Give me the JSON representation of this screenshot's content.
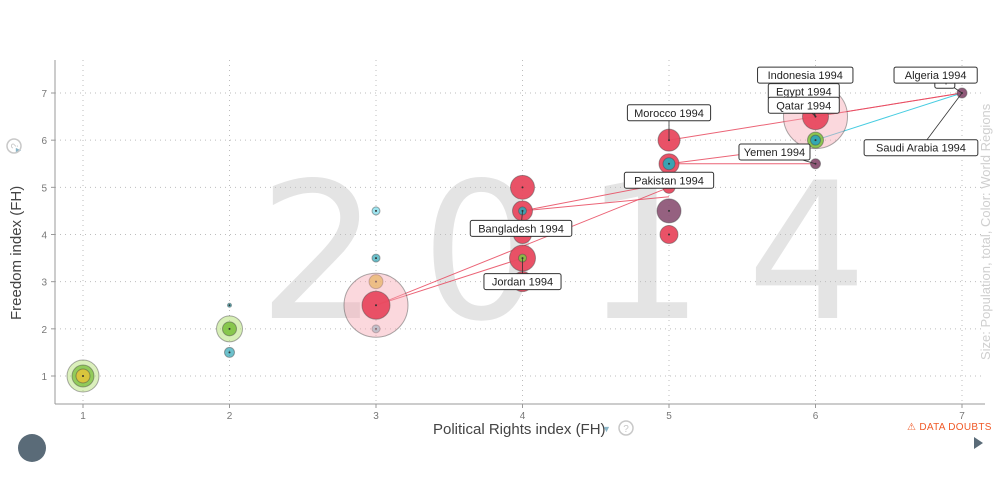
{
  "chart_data": {
    "type": "scatter",
    "year_watermark": "2014",
    "xlabel": "Political Rights index (FH)",
    "ylabel": "Freedom index (FH)",
    "size_caption": "Size: Population, total, Color: World Regions",
    "xlim": [
      0.8,
      7.2
    ],
    "ylim": [
      0.5,
      7.5
    ],
    "x_ticks": [
      "1",
      "2",
      "3",
      "4",
      "5",
      "6",
      "7"
    ],
    "y_ticks": [
      "1",
      "2",
      "3",
      "4",
      "5",
      "6",
      "7"
    ],
    "grid": true,
    "colors": {
      "red": "#e8495f",
      "green": "#7fc241",
      "yellow": "#e0c43a",
      "teal": "#2fa6b6",
      "purple": "#8a5072",
      "trail_red": "#e8495f",
      "trail_teal": "#28c4dc"
    },
    "bubbles": [
      {
        "x": 1,
        "y": 1,
        "r": 16,
        "color": "#b7e27a",
        "opacity": 0.5
      },
      {
        "x": 1,
        "y": 1,
        "r": 11,
        "color": "#7fc241",
        "opacity": 0.8
      },
      {
        "x": 1,
        "y": 1,
        "r": 7,
        "color": "#e0c43a",
        "opacity": 0.9
      },
      {
        "x": 2,
        "y": 2,
        "r": 13,
        "color": "#b7e27a",
        "opacity": 0.55
      },
      {
        "x": 2,
        "y": 2,
        "r": 7,
        "color": "#7fc241",
        "opacity": 0.9
      },
      {
        "x": 2,
        "y": 1.5,
        "r": 5,
        "color": "#2fa6b6",
        "opacity": 0.7
      },
      {
        "x": 2,
        "y": 2.5,
        "r": 2,
        "color": "#2fa6b6",
        "opacity": 0.7
      },
      {
        "x": 3,
        "y": 4.5,
        "r": 4,
        "color": "#28c4dc",
        "opacity": 0.45
      },
      {
        "x": 3,
        "y": 3.5,
        "r": 4,
        "color": "#2fa6b6",
        "opacity": 0.7
      },
      {
        "x": 3,
        "y": 3,
        "r": 7,
        "color": "#e0c43a",
        "opacity": 0.8
      },
      {
        "x": 3,
        "y": 2,
        "r": 4,
        "color": "#2fa6b6",
        "opacity": 0.5
      },
      {
        "x": 3,
        "y": 2.5,
        "r": 32,
        "color": "#f6a9b4",
        "opacity": 0.45
      },
      {
        "x": 3,
        "y": 2.5,
        "r": 14,
        "color": "#e8495f",
        "opacity": 0.95
      },
      {
        "x": 4,
        "y": 5,
        "r": 12,
        "color": "#e8495f",
        "opacity": 0.95
      },
      {
        "x": 4,
        "y": 4.5,
        "r": 10,
        "color": "#e8495f",
        "opacity": 0.95
      },
      {
        "x": 4,
        "y": 4,
        "r": 9,
        "color": "#e8495f",
        "opacity": 0.95
      },
      {
        "x": 4,
        "y": 3.5,
        "r": 13,
        "color": "#e8495f",
        "opacity": 0.95
      },
      {
        "x": 4,
        "y": 3,
        "r": 10,
        "color": "#e8495f",
        "opacity": 0.95
      },
      {
        "x": 4,
        "y": 4.5,
        "r": 4,
        "color": "#2fa6b6",
        "opacity": 0.9
      },
      {
        "x": 4,
        "y": 3.5,
        "r": 4,
        "color": "#7fc241",
        "opacity": 0.9
      },
      {
        "x": 5,
        "y": 6,
        "r": 11,
        "color": "#e8495f",
        "opacity": 0.95
      },
      {
        "x": 5,
        "y": 5.5,
        "r": 10,
        "color": "#e8495f",
        "opacity": 0.95
      },
      {
        "x": 5,
        "y": 5.5,
        "r": 6,
        "color": "#2fa6b6",
        "opacity": 0.95
      },
      {
        "x": 5,
        "y": 5,
        "r": 6,
        "color": "#e8495f",
        "opacity": 0.95
      },
      {
        "x": 5,
        "y": 4.5,
        "r": 12,
        "color": "#8a5072",
        "opacity": 0.9
      },
      {
        "x": 5,
        "y": 4,
        "r": 9,
        "color": "#e8495f",
        "opacity": 0.95
      },
      {
        "x": 6,
        "y": 6.5,
        "r": 32,
        "color": "#f6a9b4",
        "opacity": 0.45
      },
      {
        "x": 6,
        "y": 6.5,
        "r": 13,
        "color": "#e8495f",
        "opacity": 0.95
      },
      {
        "x": 6,
        "y": 6,
        "r": 8,
        "color": "#7fc241",
        "opacity": 0.9
      },
      {
        "x": 6,
        "y": 6,
        "r": 5,
        "color": "#2fa6b6",
        "opacity": 0.95
      },
      {
        "x": 6,
        "y": 5.5,
        "r": 5,
        "color": "#8a5072",
        "opacity": 0.95
      },
      {
        "x": 7,
        "y": 7,
        "r": 5,
        "color": "#8a5072",
        "opacity": 0.95
      }
    ],
    "trails": [
      {
        "x1": 3,
        "y1": 2.5,
        "x2": 5,
        "y2": 5,
        "color": "#e8495f"
      },
      {
        "x1": 3,
        "y1": 2.5,
        "x2": 4,
        "y2": 3.5,
        "color": "#e8495f"
      },
      {
        "x1": 4,
        "y1": 4.5,
        "x2": 5,
        "y2": 5.1,
        "color": "#e8495f"
      },
      {
        "x1": 4,
        "y1": 4.5,
        "x2": 5,
        "y2": 4.8,
        "color": "#e8495f"
      },
      {
        "x1": 5,
        "y1": 5.5,
        "x2": 6,
        "y2": 5.9,
        "color": "#e8495f"
      },
      {
        "x1": 5,
        "y1": 5.5,
        "x2": 6,
        "y2": 5.5,
        "color": "#e8495f"
      },
      {
        "x1": 5,
        "y1": 6,
        "x2": 7,
        "y2": 7,
        "color": "#e8495f"
      },
      {
        "x1": 6,
        "y1": 6.5,
        "x2": 7,
        "y2": 7,
        "color": "#e8495f"
      },
      {
        "x1": 6,
        "y1": 6,
        "x2": 7,
        "y2": 7,
        "color": "#28c4dc"
      }
    ],
    "annotations": [
      {
        "label": "Indonesia 1994",
        "x": 6,
        "y": 6.5,
        "tx": 5.93,
        "ty": 7.38
      },
      {
        "label": "Egypt 1994",
        "x": 6,
        "y": 6.5,
        "tx": 5.92,
        "ty": 7.03
      },
      {
        "label": "Qatar 1994",
        "x": 6,
        "y": 6.5,
        "tx": 5.92,
        "ty": 6.74
      },
      {
        "label": "Morocco 1994",
        "x": 5,
        "y": 6,
        "tx": 5,
        "ty": 6.58
      },
      {
        "label": "Yemen 1994",
        "x": 6,
        "y": 5.5,
        "tx": 5.72,
        "ty": 5.75
      },
      {
        "label": "Pakistan 1994",
        "x": 5,
        "y": 5,
        "tx": 5,
        "ty": 5.15
      },
      {
        "label": "Bangladesh 1994",
        "x": 4,
        "y": 4.5,
        "tx": 3.99,
        "ty": 4.13
      },
      {
        "label": "Jordan 1994",
        "x": 4,
        "y": 3.5,
        "tx": 4,
        "ty": 3.0
      },
      {
        "label": "Algeria 1994",
        "x": 7,
        "y": 7,
        "tx": 6.82,
        "ty": 7.38
      },
      {
        "label": "Saudi Arabia 1994",
        "x": 7,
        "y": 7,
        "tx": 6.72,
        "ty": 5.84
      }
    ],
    "annotation_fragment": {
      "label": "4",
      "tx": 6.91,
      "ty": 7.27
    }
  },
  "ui": {
    "data_doubts_label": "DATA DOUBTS",
    "warning_icon": "warning-triangle-icon",
    "help_icon": "question-circle-icon"
  }
}
